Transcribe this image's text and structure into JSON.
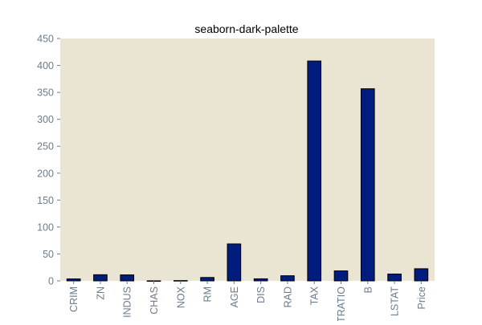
{
  "chart_data": {
    "type": "bar",
    "title": "seaborn-dark-palette",
    "xlabel": "",
    "ylabel": "",
    "categories": [
      "CRIM",
      "ZN",
      "INDUS",
      "CHAS",
      "NOX",
      "RM",
      "AGE",
      "DIS",
      "RAD",
      "TAX",
      "PTRATIO",
      "B",
      "LSTAT",
      "Price"
    ],
    "values": [
      3.6,
      11.4,
      11.1,
      0.07,
      0.55,
      6.3,
      68.6,
      3.8,
      9.5,
      408.2,
      18.5,
      356.7,
      12.7,
      22.5
    ],
    "ylim": [
      0,
      450
    ],
    "yticks": [
      0,
      50,
      100,
      150,
      200,
      250,
      300,
      350,
      400,
      450
    ],
    "grid": false,
    "colors": {
      "bar": "#001c7f",
      "bar_edge": "#000000",
      "plot_background": "#eae4d3",
      "tick_label": "#6b7b8c"
    }
  }
}
